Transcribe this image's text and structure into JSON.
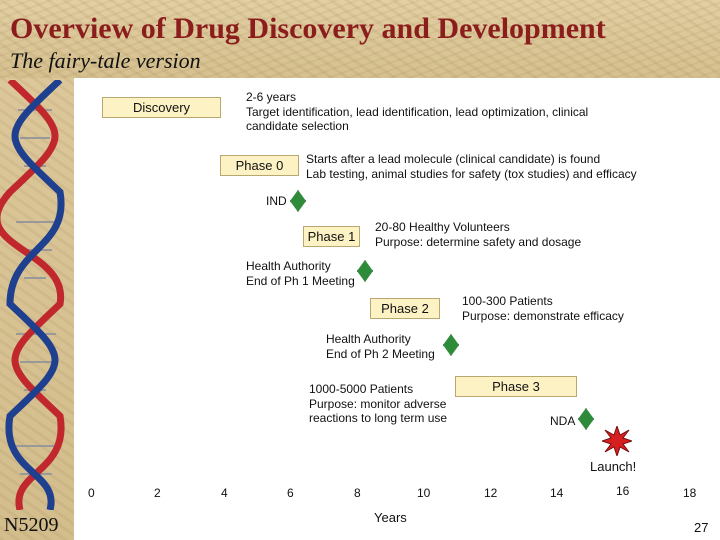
{
  "slide": {
    "title": "Overview of Drug Discovery and Development",
    "subtitle": "The fairy-tale version",
    "footer_code": "N5209",
    "page_number": "27"
  },
  "phases": {
    "discovery": {
      "label": "Discovery",
      "lines": [
        "2-6 years",
        "Target identification, lead identification, lead optimization, clinical",
        "candidate selection"
      ]
    },
    "phase0": {
      "label": "Phase 0",
      "lines": [
        "Starts after a lead molecule (clinical candidate) is found",
        "Lab testing, animal studies for safety (tox studies) and efficacy"
      ]
    },
    "phase1": {
      "label": "Phase 1",
      "lines": [
        "20-80 Healthy Volunteers",
        "Purpose: determine safety and dosage"
      ]
    },
    "phase2": {
      "label": "Phase 2",
      "lines": [
        "100-300 Patients",
        "Purpose: demonstrate efficacy"
      ]
    },
    "phase3": {
      "label": "Phase 3",
      "lines": [
        "1000-5000 Patients",
        "Purpose: monitor adverse",
        "reactions to long term use"
      ]
    }
  },
  "milestones": {
    "ind": "IND",
    "end_ph1": [
      "Health Authority",
      "End of Ph 1 Meeting"
    ],
    "end_ph2": [
      "Health Authority",
      "End of Ph 2 Meeting"
    ],
    "nda": "NDA",
    "launch": "Launch!"
  },
  "axis": {
    "title": "Years",
    "ticks": [
      "0",
      "2",
      "4",
      "6",
      "8",
      "10",
      "12",
      "14",
      "16",
      "18"
    ]
  },
  "colors": {
    "title": "#8b1d1d",
    "phase_box": "#fdf2c4",
    "milestone": "#2e8b3a",
    "launch_star": "#d62020",
    "dna_red": "#c0282d",
    "dna_blue": "#1f3f8f"
  },
  "icons": {
    "milestone": "green-diamond",
    "launch": "red-starburst",
    "illustration": "dna-double-helix"
  }
}
